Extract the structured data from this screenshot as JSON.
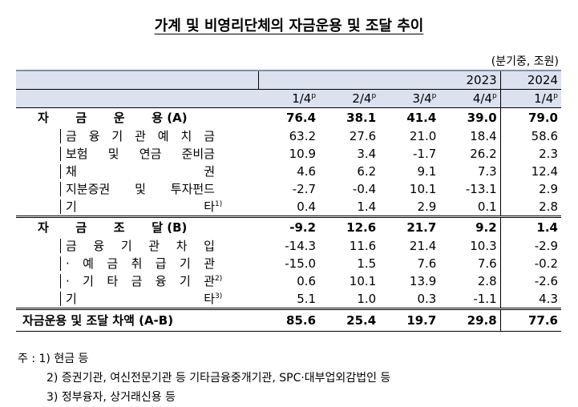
{
  "title": "가계 및 비영리단체의 자금운용 및 조달 추이",
  "unit": "(분기중, 조원)",
  "header": {
    "years": [
      {
        "text": "2023",
        "span": 4
      },
      {
        "text": "2024",
        "span": 1
      }
    ],
    "quarters": [
      {
        "text": "1/4",
        "sup": "p"
      },
      {
        "text": "2/4",
        "sup": "p"
      },
      {
        "text": "3/4",
        "sup": "p"
      },
      {
        "text": "4/4",
        "sup": "p"
      },
      {
        "text": "1/4",
        "sup": "p"
      }
    ]
  },
  "sections": [
    {
      "label": "자 금 운 용",
      "suffix": "(A)",
      "values": [
        "76.4",
        "38.1",
        "41.4",
        "39.0",
        "79.0"
      ],
      "items": [
        {
          "label": "금 융 기 관 예 치 금",
          "values": [
            "63.2",
            "27.6",
            "21.0",
            "18.4",
            "58.6"
          ]
        },
        {
          "label": "보험 및 연금 준비금",
          "values": [
            "10.9",
            "3.4",
            "-1.7",
            "26.2",
            "2.3"
          ]
        },
        {
          "label": "채 권",
          "values": [
            "4.6",
            "6.2",
            "9.1",
            "7.3",
            "12.4"
          ]
        },
        {
          "label": "지분증권 및 투자펀드",
          "values": [
            "-2.7",
            "-0.4",
            "10.1",
            "-13.1",
            "2.9"
          ]
        },
        {
          "label": "기 타",
          "sup": "1)",
          "values": [
            "0.4",
            "1.4",
            "2.9",
            "0.1",
            "2.8"
          ]
        }
      ]
    },
    {
      "label": "자 금 조 달",
      "suffix": "(B)",
      "values": [
        "-9.2",
        "12.6",
        "21.7",
        "9.2",
        "1.4"
      ],
      "items": [
        {
          "label": "금 융 기 관 차 입",
          "values": [
            "-14.3",
            "11.6",
            "21.4",
            "10.3",
            "-2.9"
          ]
        },
        {
          "label": "· 예 금 취 급 기 관",
          "values": [
            "-15.0",
            "1.5",
            "7.6",
            "7.6",
            "-0.2"
          ]
        },
        {
          "label": "· 기 타 금 융 기 관",
          "sup": "2)",
          "values": [
            "0.6",
            "10.1",
            "13.9",
            "2.8",
            "-2.6"
          ]
        },
        {
          "label": "기 타",
          "sup": "3)",
          "values": [
            "5.1",
            "1.0",
            "0.3",
            "-1.1",
            "4.3"
          ]
        }
      ]
    }
  ],
  "total": {
    "label": "자금운용 및 조달 차액 (A-B)",
    "values": [
      "85.6",
      "25.4",
      "19.7",
      "29.8",
      "77.6"
    ]
  },
  "notes": {
    "lead": "주 :",
    "items": [
      "1) 현금 등",
      "2) 증권기관, 여신전문기관 등 기타금융중개기관, SPC·대부업외감법인 등",
      "3) 정부융자, 상거래신용 등"
    ]
  }
}
